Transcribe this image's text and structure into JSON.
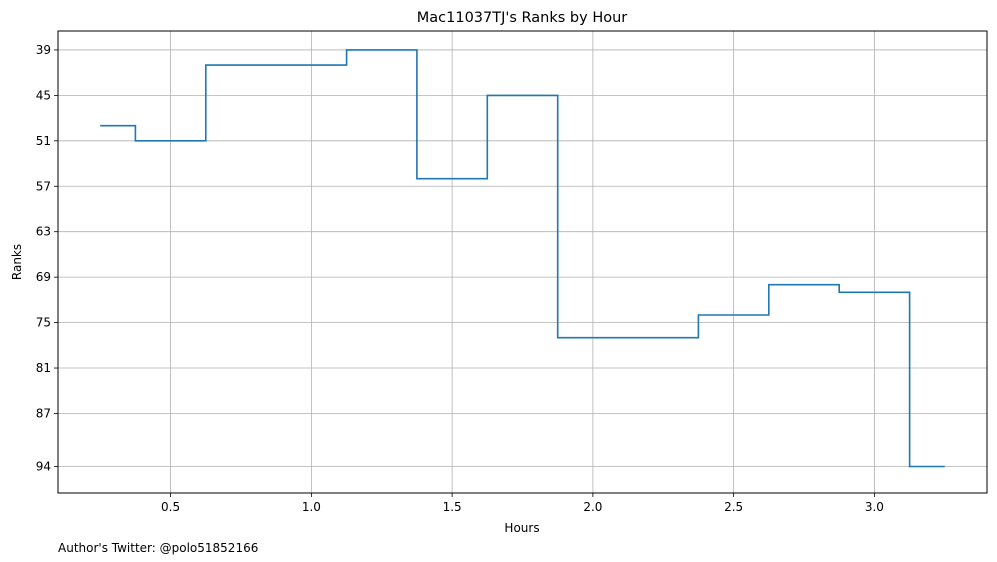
{
  "chart_data": {
    "type": "line",
    "title": "Mac11037TJ's Ranks by Hour",
    "xlabel": "Hours",
    "ylabel": "Ranks",
    "xlim": [
      0.1,
      3.4
    ],
    "ylim": [
      97.5,
      36.5
    ],
    "xticks": [
      0.5,
      1.0,
      1.5,
      2.0,
      2.5,
      3.0
    ],
    "xtick_labels": [
      "0.5",
      "1.0",
      "1.5",
      "2.0",
      "2.5",
      "3.0"
    ],
    "yticks": [
      39,
      45,
      51,
      57,
      63,
      69,
      75,
      81,
      87,
      94
    ],
    "ytick_labels": [
      "39",
      "45",
      "51",
      "57",
      "63",
      "69",
      "75",
      "81",
      "87",
      "94"
    ],
    "grid": true,
    "step": "mid",
    "series": [
      {
        "color": "#1f77b4",
        "x": [
          0.25,
          0.5,
          0.75,
          1.0,
          1.25,
          1.5,
          1.75,
          2.0,
          2.25,
          2.5,
          2.75,
          3.0,
          3.25
        ],
        "values": [
          49,
          51,
          41,
          41,
          39,
          56,
          45,
          77,
          77,
          74,
          70,
          71,
          94
        ]
      }
    ]
  },
  "footer": {
    "text": "Author's Twitter: @polo51852166"
  }
}
